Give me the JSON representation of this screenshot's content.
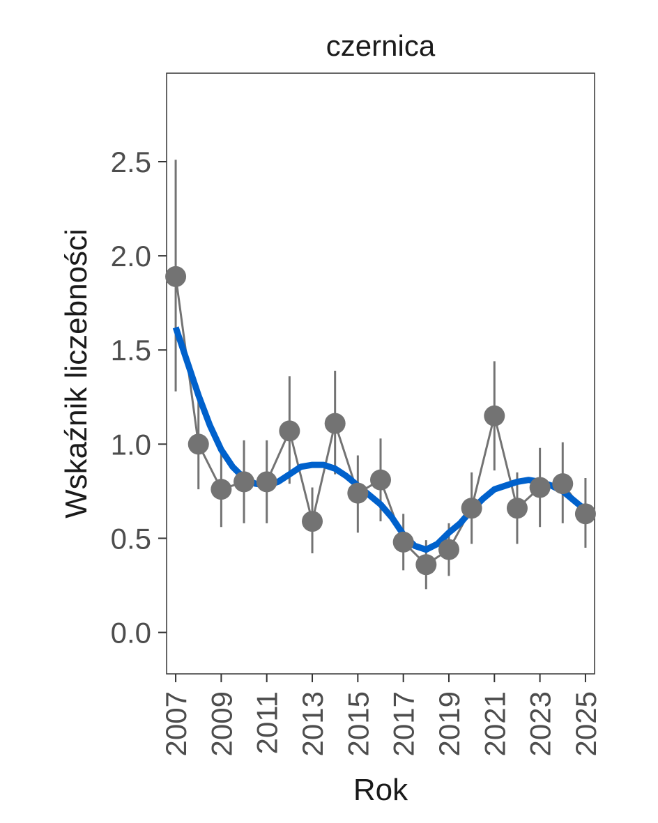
{
  "chart_data": {
    "type": "line",
    "title": "czernica",
    "xlabel": "Rok",
    "ylabel": "Wskaźnik liczebności",
    "xlim": [
      2006.6,
      2025.4
    ],
    "ylim": [
      -0.22,
      2.97
    ],
    "x_ticks": [
      2007,
      2009,
      2011,
      2013,
      2015,
      2017,
      2019,
      2021,
      2023,
      2025
    ],
    "y_ticks": [
      0.0,
      0.5,
      1.0,
      1.5,
      2.0,
      2.5
    ],
    "y_tick_labels": [
      "0.0",
      "0.5",
      "1.0",
      "1.5",
      "2.0",
      "2.5"
    ],
    "grid": false,
    "series": [
      {
        "role": "index",
        "color": "#737373",
        "x": [
          2007,
          2008,
          2009,
          2010,
          2011,
          2012,
          2013,
          2014,
          2015,
          2016,
          2017,
          2018,
          2019,
          2020,
          2021,
          2022,
          2023,
          2024,
          2025
        ],
        "y": [
          1.89,
          1.0,
          0.76,
          0.8,
          0.8,
          1.07,
          0.59,
          1.11,
          0.74,
          0.81,
          0.48,
          0.36,
          0.44,
          0.66,
          1.15,
          0.66,
          0.77,
          0.79,
          0.63
        ],
        "y_low": [
          1.28,
          0.76,
          0.56,
          0.58,
          0.58,
          0.79,
          0.42,
          0.84,
          0.53,
          0.59,
          0.33,
          0.23,
          0.3,
          0.47,
          0.86,
          0.47,
          0.56,
          0.58,
          0.45
        ],
        "y_high": [
          2.51,
          1.24,
          0.97,
          1.02,
          1.02,
          1.36,
          0.77,
          1.39,
          0.94,
          1.03,
          0.63,
          0.49,
          0.58,
          0.85,
          1.44,
          0.85,
          0.98,
          1.01,
          0.82
        ]
      },
      {
        "role": "trend",
        "color": "#0061CC",
        "x": [
          2007,
          2007.5,
          2008,
          2008.5,
          2009,
          2009.5,
          2010,
          2010.5,
          2011,
          2011.5,
          2012,
          2012.5,
          2013,
          2013.5,
          2014,
          2014.5,
          2015,
          2015.5,
          2016,
          2016.5,
          2017,
          2017.5,
          2018,
          2018.5,
          2019,
          2019.5,
          2020,
          2020.5,
          2021,
          2021.5,
          2022,
          2022.5,
          2023,
          2023.5,
          2024,
          2024.5,
          2025
        ],
        "y": [
          1.62,
          1.44,
          1.26,
          1.1,
          0.97,
          0.88,
          0.82,
          0.79,
          0.78,
          0.8,
          0.84,
          0.88,
          0.89,
          0.89,
          0.87,
          0.83,
          0.78,
          0.73,
          0.68,
          0.61,
          0.52,
          0.46,
          0.44,
          0.47,
          0.53,
          0.58,
          0.65,
          0.71,
          0.76,
          0.78,
          0.8,
          0.81,
          0.8,
          0.78,
          0.75,
          0.7,
          0.65
        ]
      }
    ]
  }
}
